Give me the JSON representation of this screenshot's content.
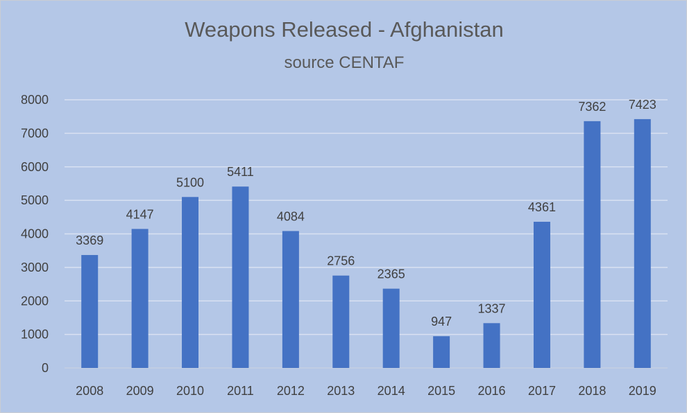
{
  "chart_data": {
    "type": "bar",
    "title": "Weapons Released - Afghanistan",
    "subtitle": "source CENTAF",
    "categories": [
      "2008",
      "2009",
      "2010",
      "2011",
      "2012",
      "2013",
      "2014",
      "2015",
      "2016",
      "2017",
      "2018",
      "2019"
    ],
    "values": [
      3369,
      4147,
      5100,
      5411,
      4084,
      2756,
      2365,
      947,
      1337,
      4361,
      7362,
      7423
    ],
    "data_labels": [
      "3369",
      "4147",
      "5100",
      "5411",
      "4084",
      "2756",
      "2365",
      "947",
      "1337",
      "4361",
      "7362",
      "7423"
    ],
    "y_ticks": [
      "0",
      "1000",
      "2000",
      "3000",
      "4000",
      "5000",
      "6000",
      "7000",
      "8000"
    ],
    "ylim": [
      0,
      8000
    ],
    "xlabel": "",
    "ylabel": "",
    "grid": true,
    "legend": "none",
    "colors": {
      "bar": "#4472c4",
      "background": "#b4c7e7",
      "gridline": "#d9e1f2",
      "text": "#404040",
      "title": "#595959"
    }
  }
}
